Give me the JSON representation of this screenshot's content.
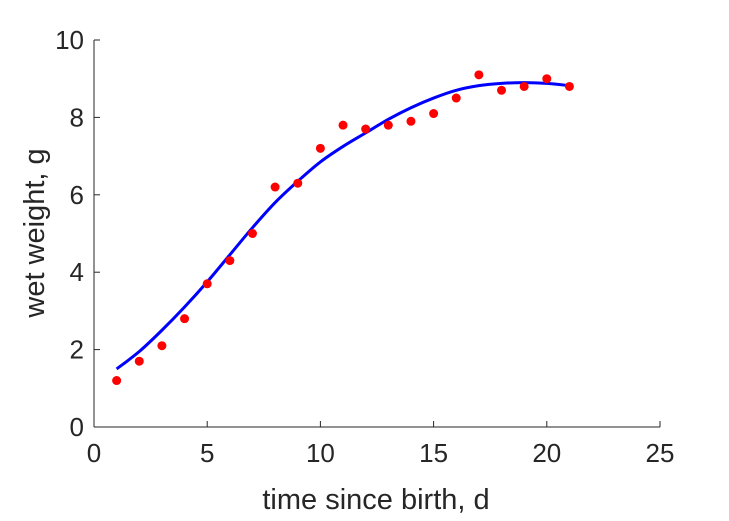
{
  "chart_data": {
    "type": "scatter",
    "title": "",
    "xlabel": "time since birth, d",
    "ylabel": "wet weight, g",
    "xlim": [
      0,
      25
    ],
    "ylim": [
      0,
      10
    ],
    "xticks": [
      0,
      5,
      10,
      15,
      20,
      25
    ],
    "yticks": [
      0,
      2,
      4,
      6,
      8,
      10
    ],
    "grid": false,
    "series": [
      {
        "kind": "points",
        "color": "#ff0000",
        "x": [
          1,
          2,
          3,
          4,
          5,
          6,
          7,
          8,
          9,
          10,
          11,
          12,
          13,
          14,
          15,
          16,
          17,
          18,
          19,
          20,
          21
        ],
        "y": [
          1.2,
          1.7,
          2.1,
          2.8,
          3.7,
          4.3,
          5.0,
          6.2,
          6.3,
          7.2,
          7.8,
          7.7,
          7.8,
          7.9,
          8.1,
          8.5,
          9.1,
          8.7,
          8.8,
          9.0,
          8.8
        ]
      },
      {
        "kind": "fit-line",
        "color": "#0000ff",
        "x": [
          1,
          2,
          3,
          4,
          5,
          6,
          7,
          8,
          9,
          10,
          11,
          12,
          13,
          14,
          15,
          16,
          17,
          18,
          19,
          20,
          21
        ],
        "y": [
          1.5,
          1.95,
          2.5,
          3.1,
          3.75,
          4.45,
          5.15,
          5.8,
          6.35,
          6.85,
          7.25,
          7.6,
          7.95,
          8.25,
          8.5,
          8.7,
          8.82,
          8.88,
          8.9,
          8.88,
          8.82
        ]
      }
    ]
  }
}
